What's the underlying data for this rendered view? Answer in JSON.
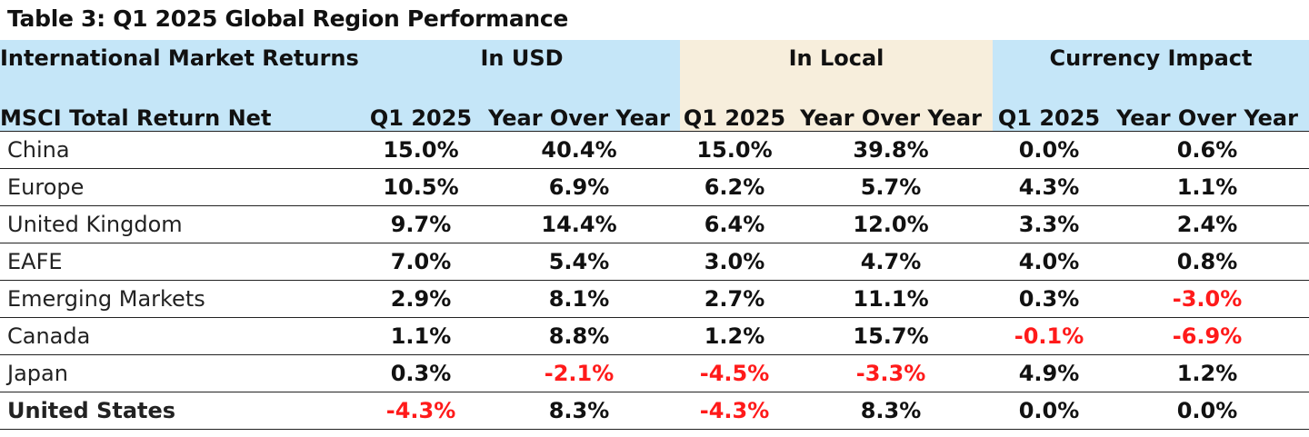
{
  "title": "Table 3: Q1 2025 Global Region Performance",
  "header": {
    "label_top": "International Market Returns",
    "label_bottom": "MSCI Total Return Net",
    "groups": [
      "In USD",
      "In Local",
      "Currency Impact"
    ],
    "sub": [
      "Q1 2025",
      "Year Over Year",
      "Q1 2025",
      "Year Over Year",
      "Q1 2025",
      "Year Over Year"
    ]
  },
  "colors": {
    "header_blue": "#c5e6f8",
    "header_tan": "#f7eedc",
    "negative": "#ff1a1a"
  },
  "rows": [
    {
      "name": "China",
      "values": [
        "15.0%",
        "40.4%",
        "15.0%",
        "39.8%",
        "0.0%",
        "0.6%"
      ]
    },
    {
      "name": "Europe",
      "values": [
        "10.5%",
        "6.9%",
        "6.2%",
        "5.7%",
        "4.3%",
        "1.1%"
      ]
    },
    {
      "name": "United Kingdom",
      "values": [
        "9.7%",
        "14.4%",
        "6.4%",
        "12.0%",
        "3.3%",
        "2.4%"
      ]
    },
    {
      "name": "EAFE",
      "values": [
        "7.0%",
        "5.4%",
        "3.0%",
        "4.7%",
        "4.0%",
        "0.8%"
      ]
    },
    {
      "name": "Emerging Markets",
      "values": [
        "2.9%",
        "8.1%",
        "2.7%",
        "11.1%",
        "0.3%",
        "-3.0%"
      ]
    },
    {
      "name": "Canada",
      "values": [
        "1.1%",
        "8.8%",
        "1.2%",
        "15.7%",
        "-0.1%",
        "-6.9%"
      ]
    },
    {
      "name": "Japan",
      "values": [
        "0.3%",
        "-2.1%",
        "-4.5%",
        "-3.3%",
        "4.9%",
        "1.2%"
      ]
    },
    {
      "name": "United States",
      "values": [
        "-4.3%",
        "8.3%",
        "-4.3%",
        "8.3%",
        "0.0%",
        "0.0%"
      ]
    }
  ]
}
